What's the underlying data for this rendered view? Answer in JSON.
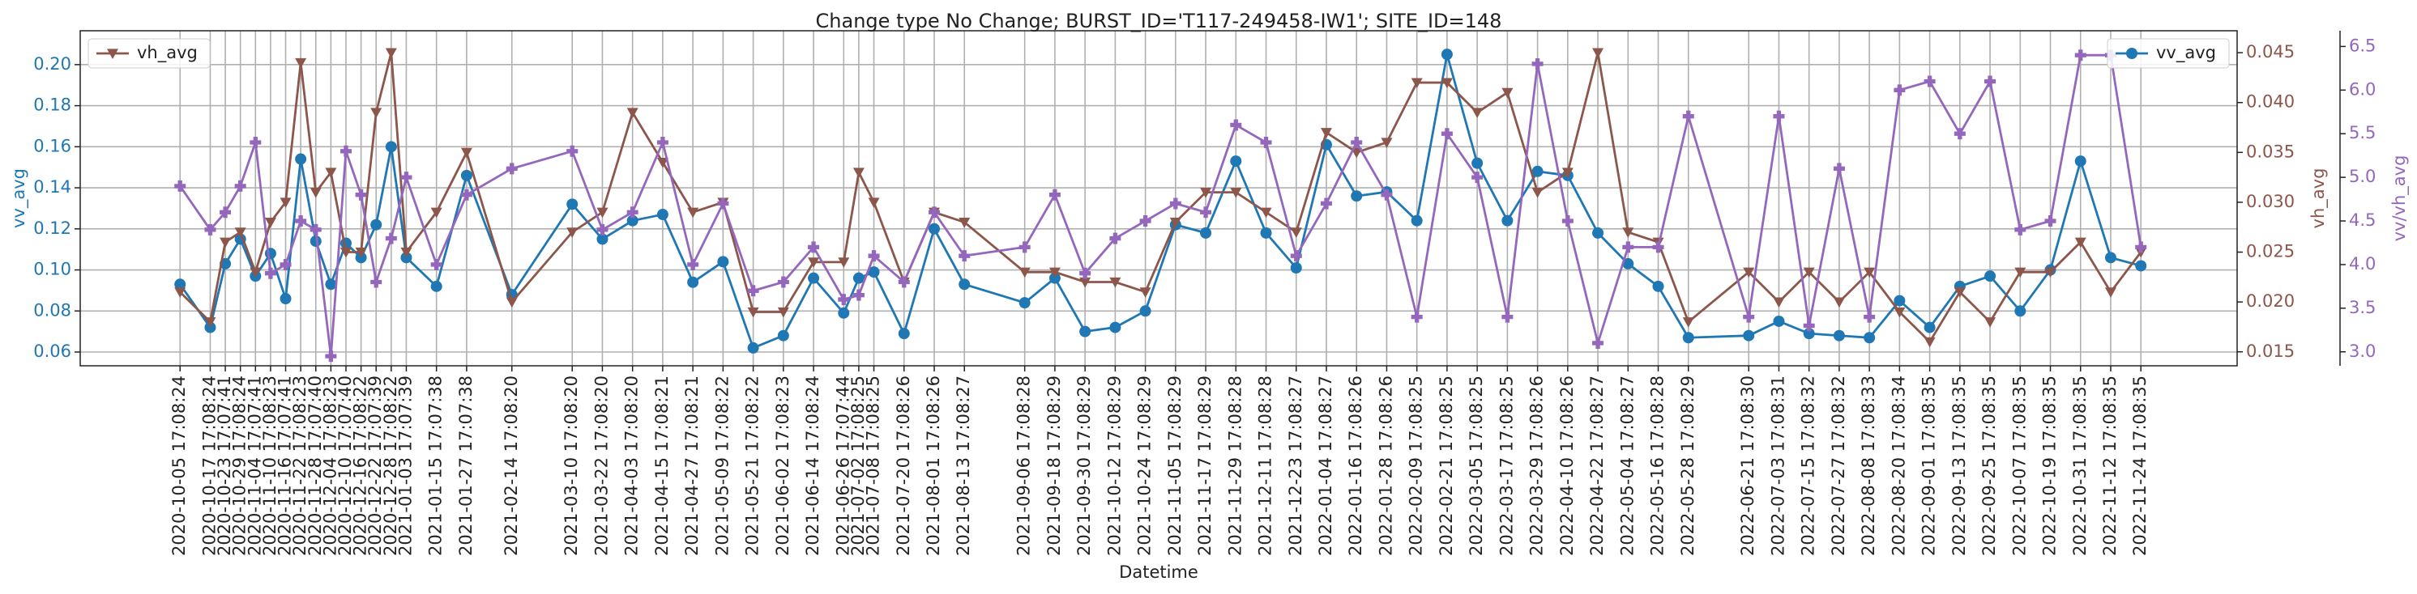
{
  "chart_data": {
    "type": "line",
    "title": "Change type No Change; BURST_ID='T117-249458-IW1'; SITE_ID=148",
    "xlabel": "Datetime",
    "ylabel": "vv_avg",
    "y2label": "vh_avg",
    "y3label": "vv/vh_avg",
    "grid": true,
    "x": [
      "2020-10-05 17:08:24",
      "2020-10-17 17:08:24",
      "2020-10-23 17:07:41",
      "2020-10-29 17:08:24",
      "2020-11-04 17:07:41",
      "2020-11-10 17:08:23",
      "2020-11-16 17:07:41",
      "2020-11-22 17:08:23",
      "2020-11-28 17:07:40",
      "2020-12-04 17:08:23",
      "2020-12-10 17:07:40",
      "2020-12-16 17:08:22",
      "2020-12-22 17:07:39",
      "2020-12-28 17:08:22",
      "2021-01-03 17:07:39",
      "2021-01-15 17:07:38",
      "2021-01-27 17:07:38",
      "2021-02-14 17:08:20",
      "2021-03-10 17:08:20",
      "2021-03-22 17:08:20",
      "2021-04-03 17:08:20",
      "2021-04-15 17:08:21",
      "2021-04-27 17:08:21",
      "2021-05-09 17:08:22",
      "2021-05-21 17:08:22",
      "2021-06-02 17:08:23",
      "2021-06-14 17:08:24",
      "2021-06-26 17:07:44",
      "2021-07-02 17:08:25",
      "2021-07-08 17:08:25",
      "2021-07-20 17:08:26",
      "2021-08-01 17:08:26",
      "2021-08-13 17:08:27",
      "2021-09-06 17:08:28",
      "2021-09-18 17:08:29",
      "2021-09-30 17:08:29",
      "2021-10-12 17:08:29",
      "2021-10-24 17:08:29",
      "2021-11-05 17:08:29",
      "2021-11-17 17:08:29",
      "2021-11-29 17:08:28",
      "2021-12-11 17:08:28",
      "2021-12-23 17:08:27",
      "2022-01-04 17:08:27",
      "2022-01-16 17:08:26",
      "2022-01-28 17:08:26",
      "2022-02-09 17:08:25",
      "2022-02-21 17:08:25",
      "2022-03-05 17:08:25",
      "2022-03-17 17:08:25",
      "2022-03-29 17:08:26",
      "2022-04-10 17:08:26",
      "2022-04-22 17:08:27",
      "2022-05-04 17:08:27",
      "2022-05-16 17:08:28",
      "2022-05-28 17:08:29",
      "2022-06-21 17:08:30",
      "2022-07-03 17:08:31",
      "2022-07-15 17:08:32",
      "2022-07-27 17:08:32",
      "2022-08-08 17:08:33",
      "2022-08-20 17:08:34",
      "2022-09-01 17:08:35",
      "2022-09-13 17:08:35",
      "2022-09-25 17:08:35",
      "2022-10-07 17:08:35",
      "2022-10-19 17:08:35",
      "2022-10-31 17:08:35",
      "2022-11-12 17:08:35",
      "2022-11-24 17:08:35"
    ],
    "xlim": [
      "2020-08-27 00:00:00",
      "2023-01-02 00:00:00"
    ],
    "ylim": [
      0.0533,
      0.2165
    ],
    "yticks": [
      {
        "value": 0.06,
        "label": "0.06"
      },
      {
        "value": 0.08,
        "label": "0.08"
      },
      {
        "value": 0.1,
        "label": "0.10"
      },
      {
        "value": 0.12,
        "label": "0.12"
      },
      {
        "value": 0.14,
        "label": "0.14"
      },
      {
        "value": 0.16,
        "label": "0.16"
      },
      {
        "value": 0.18,
        "label": "0.18"
      },
      {
        "value": 0.2,
        "label": "0.20"
      }
    ],
    "y2lim": [
      0.0136,
      0.0472
    ],
    "y2ticks": [
      {
        "value": 0.015,
        "label": "0.015"
      },
      {
        "value": 0.02,
        "label": "0.020"
      },
      {
        "value": 0.025,
        "label": "0.025"
      },
      {
        "value": 0.03,
        "label": "0.030"
      },
      {
        "value": 0.035,
        "label": "0.035"
      },
      {
        "value": 0.04,
        "label": "0.040"
      },
      {
        "value": 0.045,
        "label": "0.045"
      }
    ],
    "y3lim": [
      2.84,
      6.68
    ],
    "y3ticks": [
      {
        "value": 3,
        "label": "3.0"
      },
      {
        "value": 3.5,
        "label": "3.5"
      },
      {
        "value": 4,
        "label": "4.0"
      },
      {
        "value": 4.5,
        "label": "4.5"
      },
      {
        "value": 5,
        "label": "5.0"
      },
      {
        "value": 5.5,
        "label": "5.5"
      },
      {
        "value": 6,
        "label": "6.0"
      },
      {
        "value": 6.5,
        "label": "6.5"
      }
    ],
    "series": [
      {
        "name": "vv_avg",
        "color": "#1f77b4",
        "marker": "circle",
        "axis": "y",
        "legend": "upper right",
        "values": [
          0.093,
          0.072,
          0.103,
          0.115,
          0.097,
          0.108,
          0.086,
          0.154,
          0.114,
          0.093,
          0.113,
          0.106,
          0.122,
          0.16,
          0.106,
          0.092,
          0.146,
          0.088,
          0.132,
          0.115,
          0.124,
          0.127,
          0.094,
          0.104,
          0.062,
          0.068,
          0.096,
          0.079,
          0.096,
          0.099,
          0.069,
          0.12,
          0.093,
          0.084,
          0.096,
          0.07,
          0.072,
          0.08,
          0.122,
          0.118,
          0.153,
          0.118,
          0.101,
          0.161,
          0.136,
          0.138,
          0.124,
          0.205,
          0.152,
          0.124,
          0.148,
          0.146,
          0.118,
          0.103,
          0.092,
          0.067,
          0.068,
          0.075,
          0.069,
          0.068,
          0.067,
          0.085,
          0.072,
          0.092,
          0.097,
          0.08,
          0.1,
          0.153,
          0.106,
          0.102
        ]
      },
      {
        "name": "vh_avg",
        "color": "#8c564b",
        "marker": "triangle-down",
        "axis": "y2",
        "legend": "upper left",
        "values": [
          0.021,
          0.018,
          0.026,
          0.027,
          0.023,
          0.028,
          0.03,
          0.044,
          0.031,
          0.033,
          0.025,
          0.025,
          0.039,
          0.045,
          0.025,
          0.029,
          0.035,
          0.02,
          0.027,
          0.029,
          0.039,
          0.034,
          0.029,
          0.03,
          0.019,
          0.019,
          0.024,
          0.024,
          0.033,
          0.03,
          0.022,
          0.029,
          0.028,
          0.023,
          0.023,
          0.022,
          0.022,
          0.021,
          0.028,
          0.031,
          0.031,
          0.029,
          0.027,
          0.037,
          0.035,
          0.036,
          0.042,
          0.042,
          0.039,
          0.041,
          0.031,
          0.033,
          0.045,
          0.027,
          0.026,
          0.018,
          0.023,
          0.02,
          0.023,
          0.02,
          0.023,
          0.019,
          0.016,
          0.021,
          0.018,
          0.023,
          0.023,
          0.026,
          0.021,
          0.025
        ]
      },
      {
        "color": "#9467bd",
        "marker": "plus",
        "axis": "y3",
        "values": [
          4.9,
          4.4,
          4.6,
          4.9,
          5.4,
          3.9,
          4.0,
          4.5,
          4.4,
          2.95,
          5.3,
          4.8,
          3.8,
          4.3,
          5.0,
          4.0,
          4.8,
          5.1,
          5.3,
          4.4,
          4.6,
          5.4,
          4.0,
          4.7,
          3.7,
          3.8,
          4.2,
          3.6,
          3.65,
          4.1,
          3.8,
          4.6,
          4.1,
          4.2,
          4.8,
          3.9,
          4.3,
          4.5,
          4.7,
          4.6,
          5.6,
          5.4,
          4.1,
          4.7,
          5.4,
          4.8,
          3.4,
          5.5,
          5.0,
          3.4,
          6.3,
          4.5,
          3.1,
          4.2,
          4.2,
          5.7,
          3.4,
          5.7,
          3.3,
          5.1,
          3.4,
          6.0,
          6.1,
          5.5,
          6.1,
          4.4,
          4.5,
          6.4,
          6.4,
          4.2
        ]
      }
    ]
  }
}
